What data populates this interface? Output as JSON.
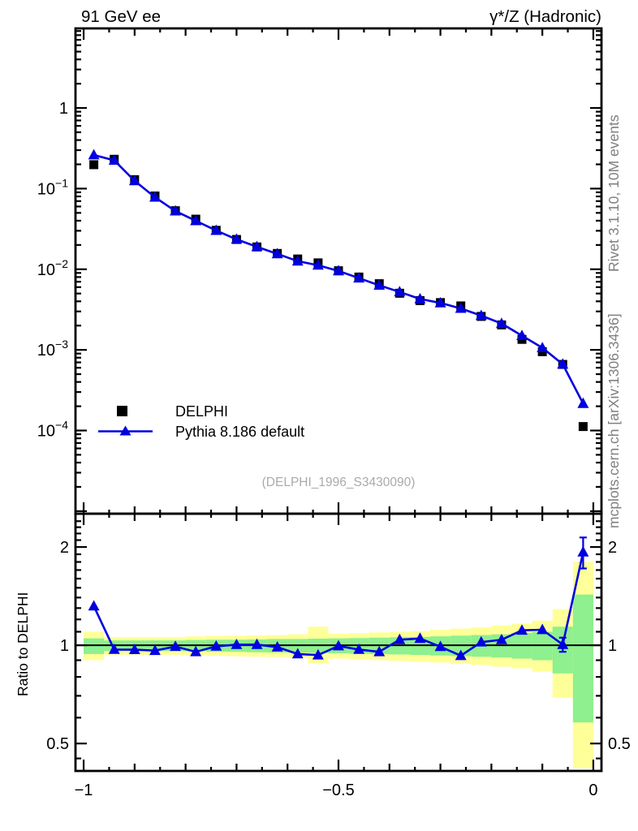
{
  "header": {
    "left_title": "91 GeV ee",
    "right_title": "γ*/Z (Hadronic)"
  },
  "sidebar_right": {
    "top": "Rivet 3.1.10,  10M events",
    "bottom": "mcplots.cern.ch [arXiv:1306.3436]"
  },
  "watermark": "(DELPHI_1996_S3430090)",
  "legend": {
    "entries": [
      "DELPHI",
      "Pythia 8.186 default"
    ]
  },
  "colors": {
    "series_blue": "#0000e0",
    "data_black": "#000000",
    "band_green": "#8ef08e",
    "band_yellow": "#ffff99",
    "text_gray": "#7f7f7f",
    "watermark_gray": "#aaaaaa"
  },
  "chart_data": {
    "type": "line",
    "title": "91 GeV ee",
    "subtitle": "γ*/Z (Hadronic)",
    "xlabel": "",
    "ylabel": "",
    "bin_width": 0.04,
    "x": [
      -0.98,
      -0.94,
      -0.9,
      -0.86,
      -0.82,
      -0.78,
      -0.74,
      -0.7,
      -0.66,
      -0.62,
      -0.58,
      -0.54,
      -0.5,
      -0.46,
      -0.42,
      -0.38,
      -0.34,
      -0.3,
      -0.26,
      -0.22,
      -0.18,
      -0.14,
      -0.1,
      -0.06,
      -0.02
    ],
    "series": [
      {
        "name": "DELPHI",
        "marker": "square",
        "color": "#000000",
        "values": [
          0.198,
          0.231,
          0.129,
          0.081,
          0.0532,
          0.0418,
          0.0304,
          0.0234,
          0.0189,
          0.0157,
          0.0134,
          0.012,
          0.00958,
          0.008,
          0.00662,
          0.00504,
          0.00408,
          0.00386,
          0.00351,
          0.0026,
          0.00204,
          0.00135,
          0.00095,
          0.00066,
          0.000112
        ]
      },
      {
        "name": "Pythia 8.186 default",
        "marker": "triangle",
        "color": "#0000e0",
        "values": [
          0.261,
          0.224,
          0.125,
          0.078,
          0.0527,
          0.0399,
          0.0302,
          0.0235,
          0.019,
          0.0155,
          0.0126,
          0.0112,
          0.00953,
          0.00776,
          0.00632,
          0.00524,
          0.00428,
          0.00382,
          0.00326,
          0.00266,
          0.00212,
          0.0015,
          0.00106,
          0.000663,
          0.000216
        ]
      }
    ],
    "ratio": {
      "label": "Ratio to DELPHI",
      "values": [
        1.318,
        0.97,
        0.969,
        0.963,
        0.991,
        0.955,
        0.993,
        1.004,
        1.005,
        0.987,
        0.94,
        0.933,
        0.995,
        0.97,
        0.955,
        1.04,
        1.049,
        0.99,
        0.929,
        1.023,
        1.039,
        1.111,
        1.116,
        1.005,
        1.929
      ],
      "err": [
        0,
        0,
        0,
        0,
        0,
        0,
        0,
        0,
        0,
        0,
        0,
        0,
        0,
        0,
        0,
        0,
        0,
        0,
        0,
        0,
        0,
        0,
        0,
        0.05,
        0.21
      ],
      "band_green_lo": [
        0.94,
        0.96,
        0.96,
        0.96,
        0.96,
        0.958,
        0.955,
        0.955,
        0.952,
        0.95,
        0.95,
        0.948,
        0.945,
        0.942,
        0.94,
        0.937,
        0.934,
        0.93,
        0.926,
        0.922,
        0.917,
        0.91,
        0.9,
        0.82,
        0.58
      ],
      "band_green_hi": [
        1.05,
        1.035,
        1.035,
        1.035,
        1.035,
        1.038,
        1.04,
        1.04,
        1.042,
        1.045,
        1.045,
        1.048,
        1.05,
        1.052,
        1.055,
        1.058,
        1.06,
        1.065,
        1.07,
        1.075,
        1.08,
        1.09,
        1.1,
        1.14,
        1.43
      ],
      "band_yellow_lo": [
        0.9,
        0.935,
        0.935,
        0.935,
        0.935,
        0.93,
        0.928,
        0.925,
        0.922,
        0.92,
        0.915,
        0.88,
        0.91,
        0.905,
        0.9,
        0.895,
        0.89,
        0.885,
        0.878,
        0.87,
        0.86,
        0.85,
        0.83,
        0.69,
        0.42
      ],
      "band_yellow_hi": [
        1.1,
        1.06,
        1.06,
        1.06,
        1.06,
        1.065,
        1.068,
        1.07,
        1.072,
        1.075,
        1.08,
        1.14,
        1.085,
        1.09,
        1.095,
        1.1,
        1.105,
        1.115,
        1.125,
        1.135,
        1.15,
        1.165,
        1.19,
        1.29,
        1.8
      ]
    },
    "axes": {
      "x": {
        "range": [
          -1.016,
          0.016
        ],
        "major_ticks": [
          -1,
          -0.5,
          0
        ],
        "major_labels": [
          "−1",
          "−0.5",
          "0"
        ],
        "mid_tick_step": 0.1,
        "minor_tick_step": 0.05,
        "grid": false
      },
      "y_main": {
        "scale": "log",
        "range": [
          9.3e-06,
          9.7
        ],
        "major_ticks": [
          1,
          0.1,
          0.01,
          0.001,
          0.0001,
          1e-05
        ],
        "major_labels": [
          {
            "base": "1",
            "exp": null
          },
          {
            "base": "10",
            "exp": "−1"
          },
          {
            "base": "10",
            "exp": "−2"
          },
          {
            "base": "10",
            "exp": "−3"
          },
          {
            "base": "10",
            "exp": "−4"
          },
          null
        ]
      },
      "y_ratio": {
        "scale": "log",
        "range": [
          0.412,
          2.53
        ],
        "major_ticks": [
          0.5,
          1,
          2
        ],
        "major_labels": [
          "0.5",
          "1",
          "2"
        ],
        "minor_ticks": [
          0.45,
          0.6,
          0.7,
          0.8,
          0.9,
          1.1,
          1.2,
          1.3,
          1.4,
          1.5,
          1.6,
          1.7,
          1.8,
          1.9,
          2.1,
          2.2,
          2.3,
          2.4
        ],
        "reference_line": 1
      }
    }
  }
}
